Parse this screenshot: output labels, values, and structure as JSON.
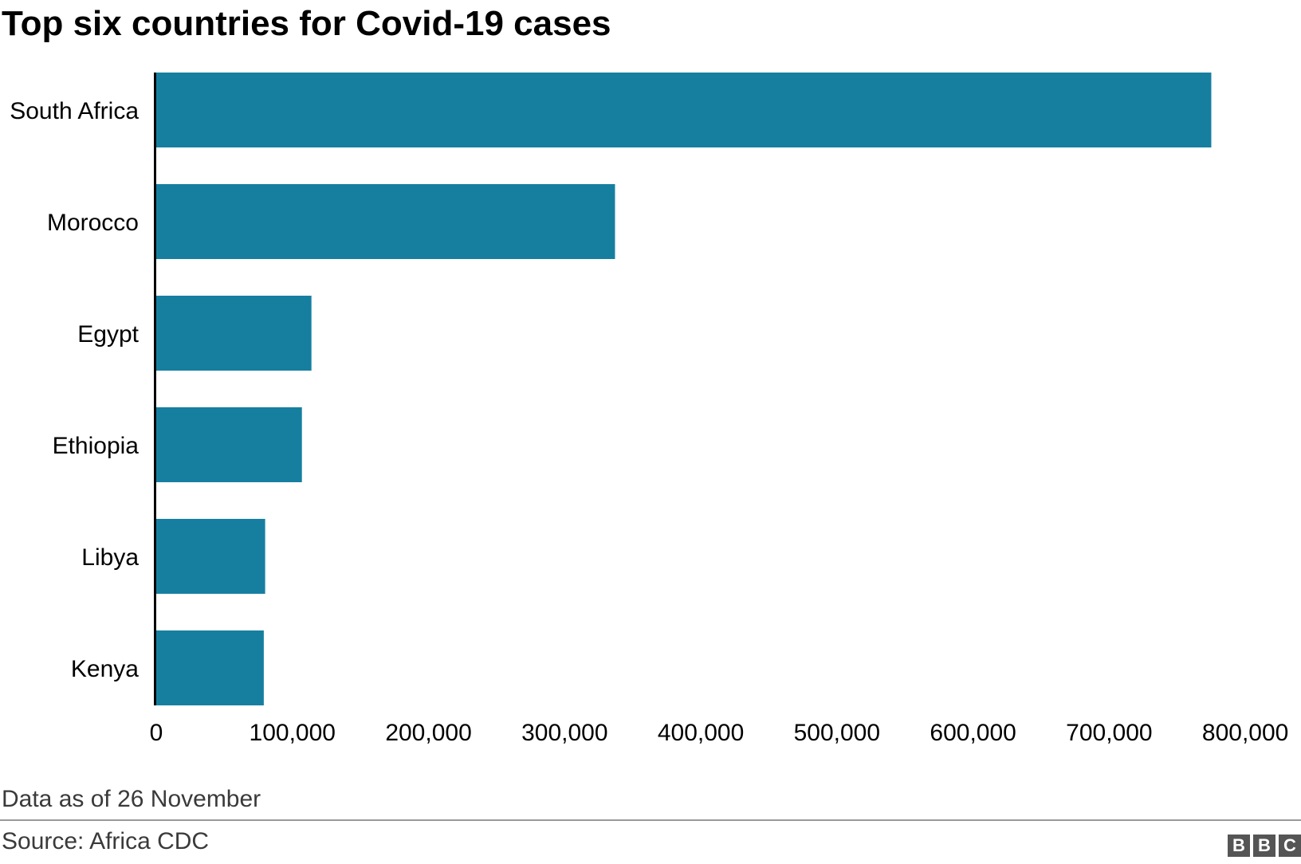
{
  "title": "Top six countries for Covid-19 cases",
  "note": "Data as of 26 November",
  "source": "Source: Africa CDC",
  "logo": [
    "B",
    "B",
    "C"
  ],
  "colors": {
    "bar": "#167fa0",
    "axis": "#000000"
  },
  "chart_data": {
    "type": "bar",
    "orientation": "horizontal",
    "title": "Top six countries for Covid-19 cases",
    "categories": [
      "South Africa",
      "Morocco",
      "Egypt",
      "Ethiopia",
      "Libya",
      "Kenya"
    ],
    "values": [
      775000,
      337000,
      114000,
      107000,
      80000,
      79000
    ],
    "xlim": [
      0,
      800000
    ],
    "xticks": [
      0,
      100000,
      200000,
      300000,
      400000,
      500000,
      600000,
      700000,
      800000
    ],
    "xtick_labels": [
      "0",
      "100,000",
      "200,000",
      "300,000",
      "400,000",
      "500,000",
      "600,000",
      "700,000",
      "800,000"
    ],
    "xlabel": "",
    "ylabel": "",
    "grid": false
  }
}
